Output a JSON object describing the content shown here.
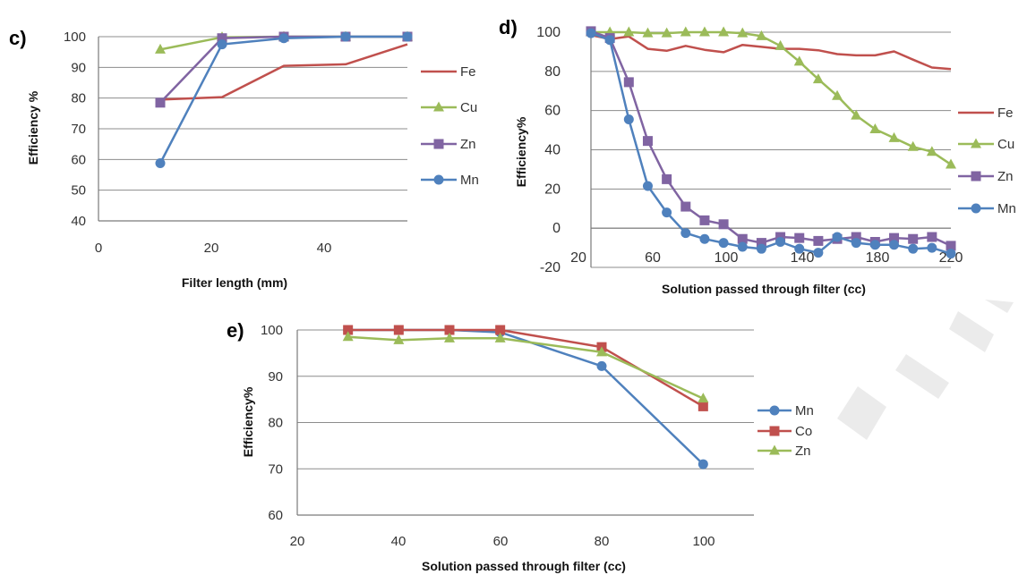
{
  "chart_data": [
    {
      "panel": "c)",
      "type": "line",
      "xlabel": "Filter length (mm)",
      "ylabel": "Efficiency %",
      "xlim": [
        0,
        50
      ],
      "ylim": [
        40,
        100
      ],
      "x_ticks": [
        "0",
        "20",
        "40"
      ],
      "y_ticks": [
        "40",
        "50",
        "60",
        "70",
        "80",
        "90",
        "100"
      ],
      "grid": "horizontal",
      "legend": "right",
      "series": [
        {
          "name": "Fe",
          "color": "#c0504d",
          "marker": "none",
          "x": [
            10,
            20,
            30,
            40,
            50
          ],
          "y": [
            79.5,
            80.3,
            90.5,
            91.0,
            97.5
          ]
        },
        {
          "name": "Cu",
          "color": "#9bbb59",
          "marker": "triangle",
          "x": [
            10,
            20,
            30,
            40,
            50
          ],
          "y": [
            95.8,
            99.8,
            100,
            100,
            100
          ]
        },
        {
          "name": "Zn",
          "color": "#8064a2",
          "marker": "square",
          "x": [
            10,
            20,
            30,
            40,
            50
          ],
          "y": [
            78.5,
            99.5,
            100,
            100,
            100
          ]
        },
        {
          "name": "Mn",
          "color": "#4f81bd",
          "marker": "circle",
          "x": [
            10,
            20,
            30,
            40,
            50
          ],
          "y": [
            58.8,
            97.5,
            99.5,
            100,
            100
          ]
        }
      ]
    },
    {
      "panel": "d)",
      "type": "line",
      "xlabel": "Solution passed  through filter (cc)",
      "ylabel": "Efficiency%",
      "xlim": [
        30,
        220
      ],
      "ylim": [
        -20,
        100
      ],
      "x_ticks": [
        "20",
        "60",
        "100",
        "140",
        "180",
        "220"
      ],
      "y_ticks": [
        "-20",
        "0",
        "20",
        "40",
        "60",
        "80",
        "100"
      ],
      "grid": "horizontal",
      "legend": "right",
      "series": [
        {
          "name": "Fe",
          "color": "#c0504d",
          "marker": "none",
          "x": [
            30,
            40,
            50,
            60,
            70,
            80,
            90,
            100,
            110,
            120,
            130,
            140,
            150,
            160,
            170,
            180,
            190,
            200,
            210,
            220
          ],
          "y": [
            98.5,
            96.5,
            97.8,
            91.5,
            90.5,
            93.0,
            91.0,
            89.8,
            93.5,
            92.5,
            91.5,
            91.5,
            90.8,
            88.8,
            88.2,
            88.2,
            90.2,
            86.0,
            82.0,
            81.2
          ]
        },
        {
          "name": "Cu",
          "color": "#9bbb59",
          "marker": "triangle",
          "x": [
            30,
            40,
            50,
            60,
            70,
            80,
            90,
            100,
            110,
            120,
            130,
            140,
            150,
            160,
            170,
            180,
            190,
            200,
            210,
            220
          ],
          "y": [
            100,
            100,
            100,
            99.5,
            99.5,
            100,
            100,
            100,
            99.5,
            98.0,
            93.0,
            85.0,
            76.0,
            67.5,
            57.5,
            50.5,
            46.0,
            41.5,
            39.0,
            32.5
          ]
        },
        {
          "name": "Zn",
          "color": "#8064a2",
          "marker": "square",
          "x": [
            30,
            40,
            50,
            60,
            70,
            80,
            90,
            100,
            110,
            120,
            130,
            140,
            150,
            160,
            170,
            180,
            190,
            200,
            210,
            220
          ],
          "y": [
            100.5,
            97.0,
            74.5,
            44.5,
            25.0,
            11.0,
            4.0,
            2.0,
            -5.5,
            -7.5,
            -4.5,
            -5.0,
            -6.5,
            -5.5,
            -4.5,
            -7.0,
            -5.0,
            -5.5,
            -4.5,
            -9.0
          ]
        },
        {
          "name": "Mn",
          "color": "#4f81bd",
          "marker": "circle",
          "x": [
            30,
            40,
            50,
            60,
            70,
            80,
            90,
            100,
            110,
            120,
            130,
            140,
            150,
            160,
            170,
            180,
            190,
            200,
            210,
            220
          ],
          "y": [
            99.5,
            96.0,
            55.5,
            21.5,
            8.0,
            -2.5,
            -5.5,
            -7.5,
            -9.5,
            -10.5,
            -7.0,
            -10.5,
            -12.5,
            -4.5,
            -7.5,
            -8.5,
            -8.5,
            -10.5,
            -10.0,
            -13.0
          ]
        }
      ]
    },
    {
      "panel": "e)",
      "type": "line",
      "xlabel": "Solution passed through filter (cc)",
      "ylabel": "Efficiency%",
      "xlim": [
        20,
        110
      ],
      "ylim": [
        60,
        100
      ],
      "x_ticks": [
        "20",
        "40",
        "60",
        "80",
        "100"
      ],
      "y_ticks": [
        "60",
        "70",
        "80",
        "90",
        "100"
      ],
      "grid": "horizontal",
      "legend": "right",
      "series": [
        {
          "name": "Mn",
          "color": "#4f81bd",
          "marker": "circle",
          "x": [
            30,
            40,
            50,
            60,
            80,
            100
          ],
          "y": [
            100,
            100,
            100,
            99.5,
            92.2,
            71.0
          ]
        },
        {
          "name": "Co",
          "color": "#c0504d",
          "marker": "square",
          "x": [
            30,
            40,
            50,
            60,
            80,
            100
          ],
          "y": [
            100,
            100,
            100,
            100,
            96.3,
            83.5
          ]
        },
        {
          "name": "Zn",
          "color": "#9bbb59",
          "marker": "triangle",
          "x": [
            30,
            40,
            50,
            60,
            80,
            100
          ],
          "y": [
            98.5,
            97.8,
            98.2,
            98.2,
            95.2,
            85.2
          ]
        }
      ]
    }
  ]
}
